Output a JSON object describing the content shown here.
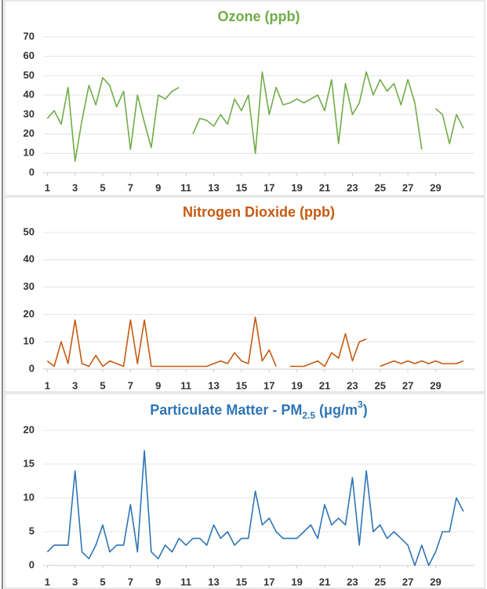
{
  "chart_data": [
    {
      "type": "line",
      "title": "Ozone (ppb)",
      "color": "#70ad47",
      "x": [
        1,
        1.5,
        2,
        2.5,
        3,
        3.5,
        4,
        4.5,
        5,
        5.5,
        6,
        6.5,
        7,
        7.5,
        8,
        8.5,
        9,
        9.5,
        10,
        10.5,
        11,
        11.5,
        12,
        12.5,
        13,
        13.5,
        14,
        14.5,
        15,
        15.5,
        16,
        16.5,
        17,
        17.5,
        18,
        18.5,
        19,
        19.5,
        20,
        20.5,
        21,
        21.5,
        22,
        22.5,
        23,
        23.5,
        24,
        24.5,
        25,
        25.5,
        26,
        26.5,
        27,
        27.5,
        28,
        28.5,
        29,
        29.5,
        30,
        30.5,
        31
      ],
      "values": [
        28,
        32,
        25,
        44,
        6,
        27,
        45,
        35,
        49,
        45,
        34,
        42,
        12,
        40,
        26,
        13,
        40,
        38,
        42,
        44,
        null,
        20,
        28,
        27,
        24,
        30,
        25,
        38,
        32,
        40,
        10,
        52,
        30,
        44,
        35,
        36,
        38,
        36,
        38,
        40,
        32,
        48,
        15,
        46,
        30,
        36,
        52,
        40,
        48,
        42,
        46,
        35,
        48,
        36,
        12,
        null,
        33,
        30,
        15,
        30,
        23
      ],
      "xlim": [
        0.7,
        31.8
      ],
      "xticks": [
        1,
        3,
        5,
        7,
        9,
        11,
        13,
        15,
        17,
        19,
        21,
        23,
        25,
        27,
        29
      ],
      "ylim": [
        0,
        70
      ],
      "yticks": [
        0,
        10,
        20,
        30,
        40,
        50,
        60,
        70
      ],
      "grid": true
    },
    {
      "type": "line",
      "title": "Nitrogen Dioxide (ppb)",
      "color": "#c55a11",
      "x": [
        1,
        1.5,
        2,
        2.5,
        3,
        3.5,
        4,
        4.5,
        5,
        5.5,
        6,
        6.5,
        7,
        7.5,
        8,
        8.5,
        9,
        9.5,
        10,
        10.5,
        11,
        11.5,
        12,
        12.5,
        13,
        13.5,
        14,
        14.5,
        15,
        15.5,
        16,
        16.5,
        17,
        17.5,
        18,
        18.5,
        19,
        19.5,
        20,
        20.5,
        21,
        21.5,
        22,
        22.5,
        23,
        23.5,
        24,
        24.5,
        25,
        25.5,
        26,
        26.5,
        27,
        27.5,
        28,
        28.5,
        29,
        29.5,
        30,
        30.5,
        31
      ],
      "values": [
        3,
        1,
        10,
        2,
        18,
        2,
        1,
        5,
        1,
        3,
        2,
        1,
        18,
        2,
        18,
        1,
        1,
        1,
        1,
        1,
        1,
        1,
        1,
        1,
        2,
        3,
        2,
        6,
        3,
        2,
        19,
        3,
        7,
        1,
        null,
        1,
        1,
        1,
        2,
        3,
        1,
        6,
        4,
        13,
        3,
        10,
        11,
        null,
        1,
        2,
        3,
        2,
        3,
        2,
        3,
        2,
        3,
        2,
        2,
        2,
        3
      ],
      "xlim": [
        0.7,
        31.8
      ],
      "xticks": [
        1,
        3,
        5,
        7,
        9,
        11,
        13,
        15,
        17,
        19,
        21,
        23,
        25,
        27,
        29
      ],
      "ylim": [
        0,
        50
      ],
      "yticks": [
        0,
        10,
        20,
        30,
        40,
        50
      ],
      "grid": true
    },
    {
      "type": "line",
      "title": {
        "main": "Particulate Matter - PM",
        "subscript": "2.5",
        "unit": " (μg/m",
        "superscript": "3",
        "close": ")"
      },
      "color": "#2e75b6",
      "x": [
        1,
        1.5,
        2,
        2.5,
        3,
        3.5,
        4,
        4.5,
        5,
        5.5,
        6,
        6.5,
        7,
        7.5,
        8,
        8.5,
        9,
        9.5,
        10,
        10.5,
        11,
        11.5,
        12,
        12.5,
        13,
        13.5,
        14,
        14.5,
        15,
        15.5,
        16,
        16.5,
        17,
        17.5,
        18,
        18.5,
        19,
        19.5,
        20,
        20.5,
        21,
        21.5,
        22,
        22.5,
        23,
        23.5,
        24,
        24.5,
        25,
        25.5,
        26,
        26.5,
        27,
        27.5,
        28,
        28.5,
        29,
        29.5,
        30,
        30.5,
        31
      ],
      "values": [
        2,
        3,
        3,
        3,
        14,
        2,
        1,
        3,
        6,
        2,
        3,
        3,
        9,
        2,
        17,
        2,
        1,
        3,
        2,
        4,
        3,
        4,
        4,
        3,
        6,
        4,
        5,
        3,
        4,
        4,
        11,
        6,
        7,
        5,
        4,
        4,
        4,
        5,
        6,
        4,
        9,
        6,
        7,
        6,
        13,
        3,
        14,
        5,
        6,
        4,
        5,
        4,
        3,
        0,
        3,
        0,
        2,
        5,
        5,
        10,
        8
      ],
      "xlim": [
        0.7,
        31.8
      ],
      "xticks": [
        1,
        3,
        5,
        7,
        9,
        11,
        13,
        15,
        17,
        19,
        21,
        23,
        25,
        27,
        29
      ],
      "ylim": [
        0,
        20
      ],
      "yticks": [
        0,
        5,
        10,
        15,
        20
      ],
      "grid": true
    }
  ]
}
